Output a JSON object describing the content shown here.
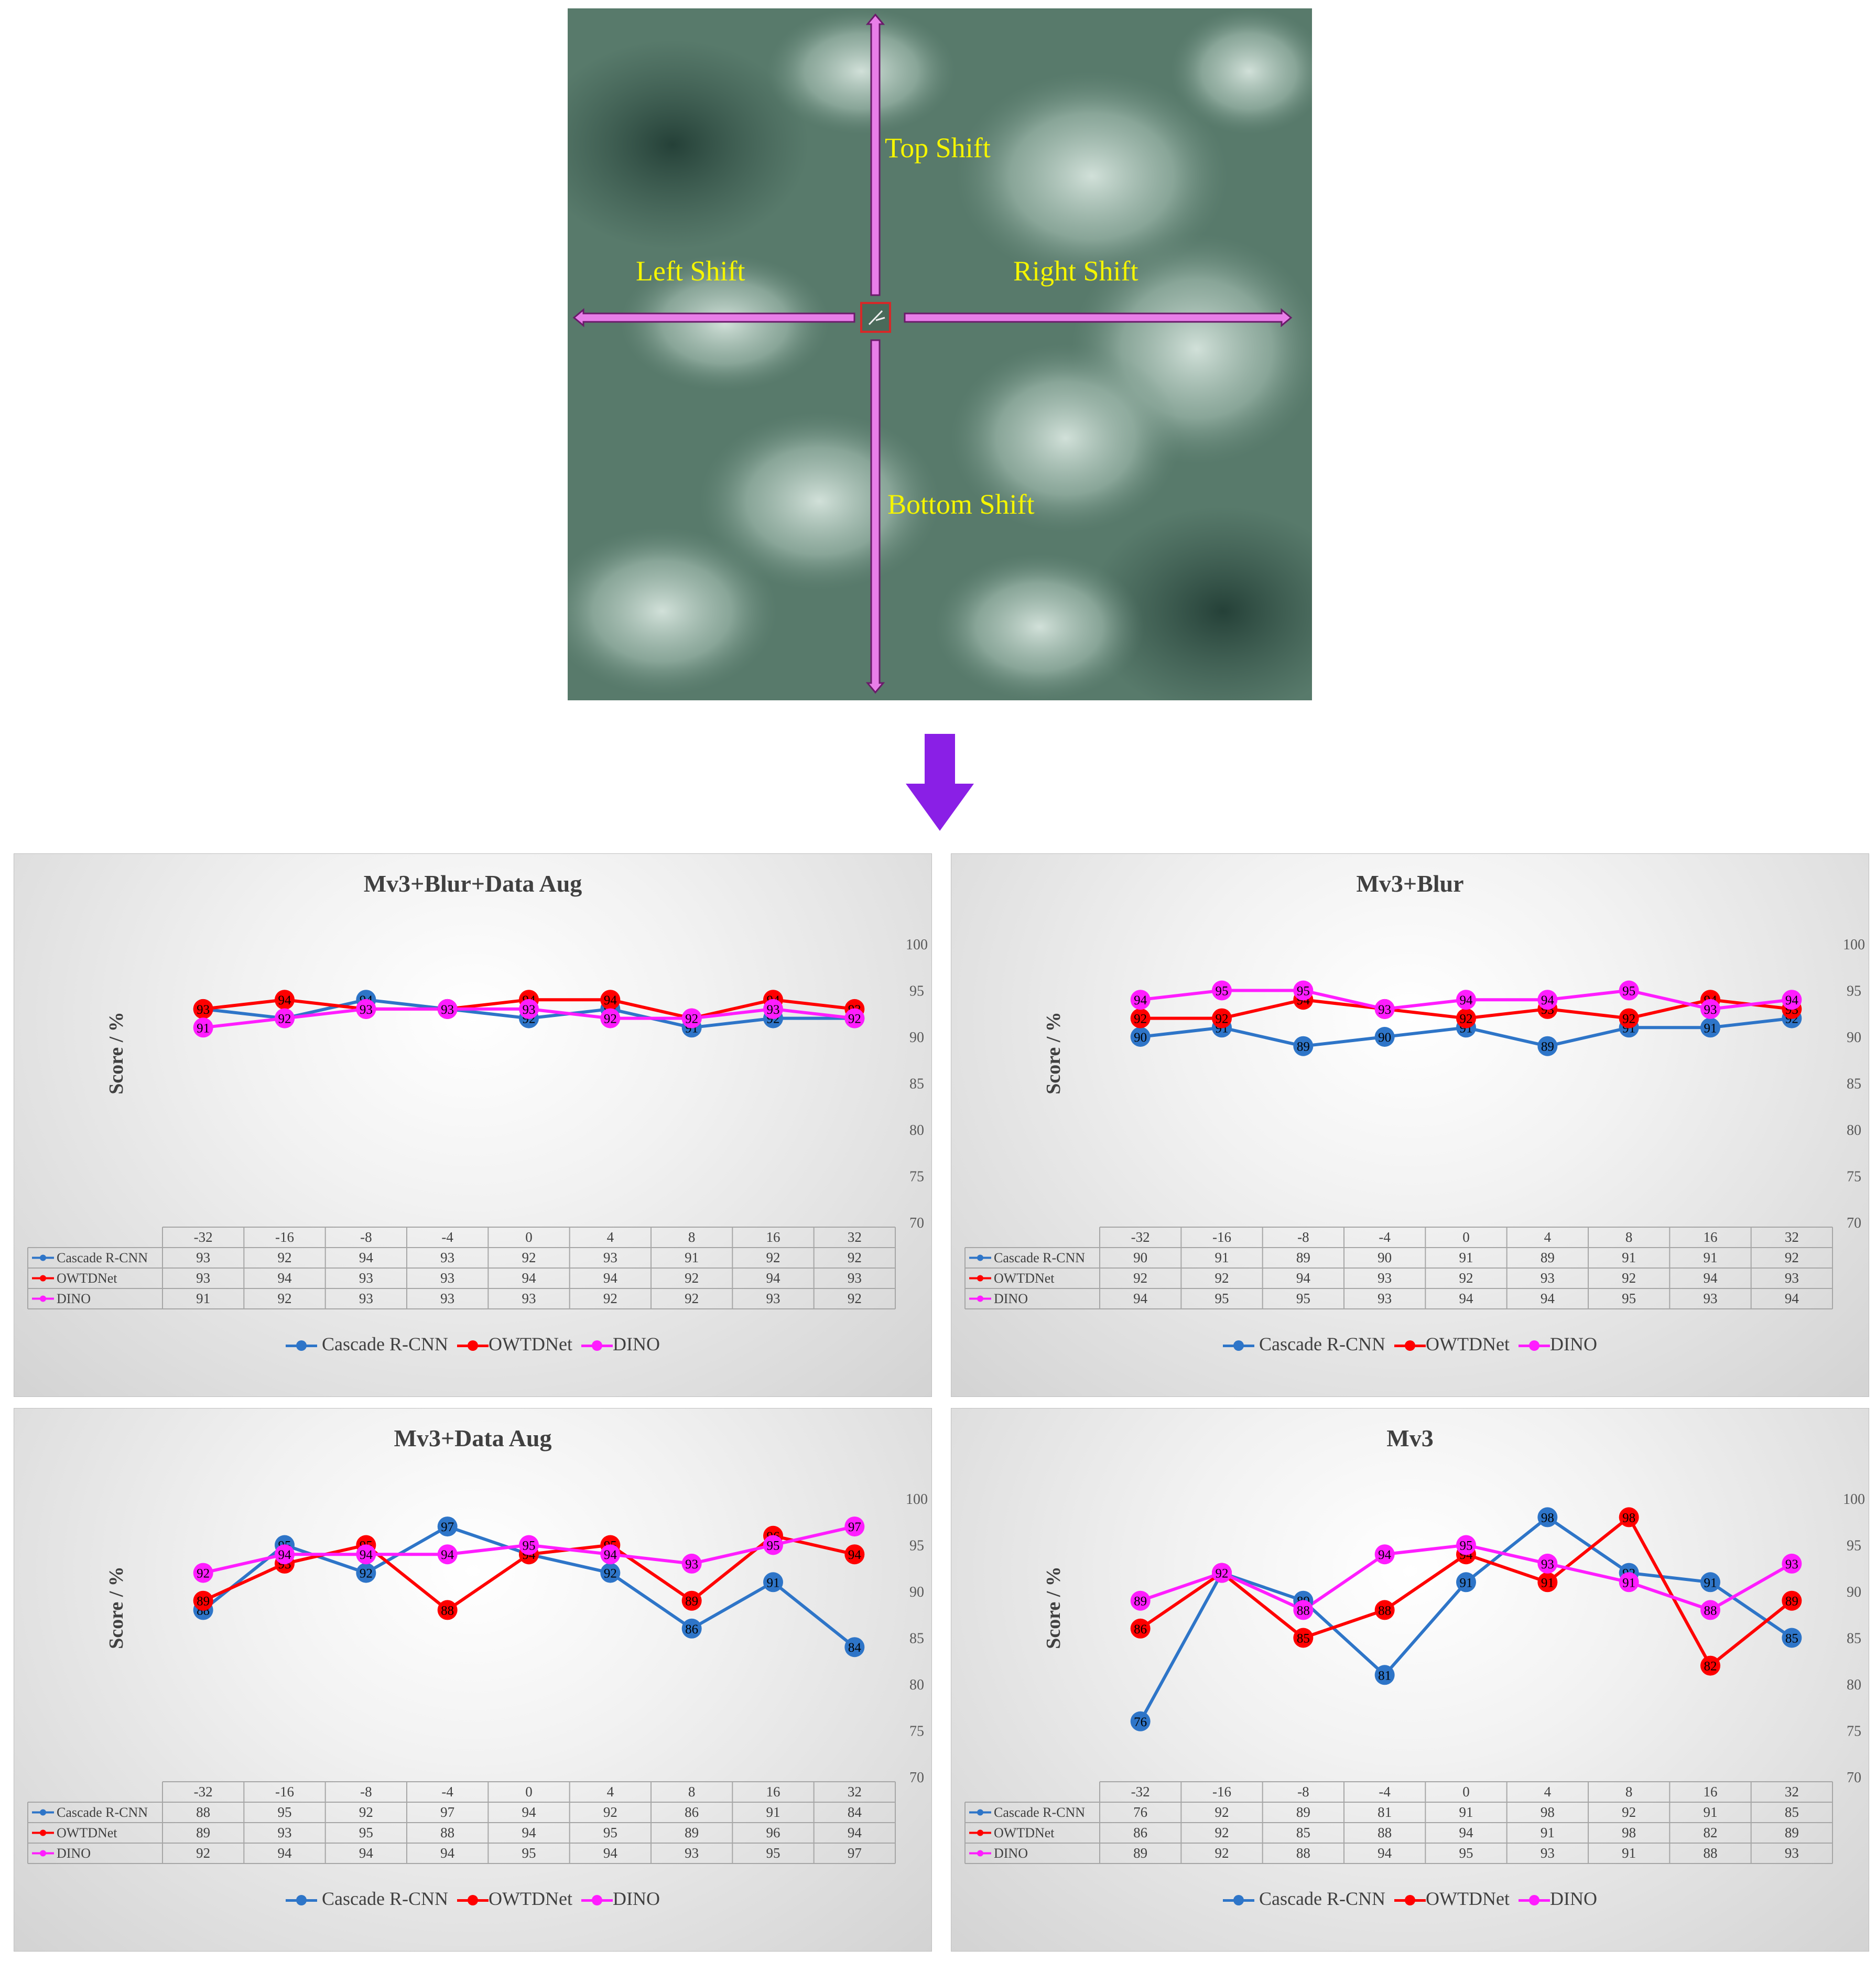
{
  "aerial": {
    "labels": {
      "top": "Top Shift",
      "left": "Left Shift",
      "right": "Right Shift",
      "bottom": "Bottom Shift"
    },
    "arrow_color": "#e87ee8",
    "target_box_color": "#d62828"
  },
  "flow_arrow_color": "#8a1fe6",
  "colors": {
    "Cascade R-CNN": "#2e75c8",
    "OWTDNet": "#ff0000",
    "DINO": "#ff1dff"
  },
  "chart_data": [
    {
      "type": "line",
      "title": "Mv3+Blur+Data Aug",
      "ylabel": "Score / %",
      "ylim": [
        70,
        100
      ],
      "yticks": [
        70,
        75,
        80,
        85,
        90,
        95,
        100
      ],
      "categories": [
        "-32",
        "-16",
        "-8",
        "-4",
        "0",
        "4",
        "8",
        "16",
        "32"
      ],
      "series": [
        {
          "name": "Cascade R-CNN",
          "values": [
            93,
            92,
            94,
            93,
            92,
            93,
            91,
            92,
            92
          ]
        },
        {
          "name": "OWTDNet",
          "values": [
            93,
            94,
            93,
            93,
            94,
            94,
            92,
            94,
            93
          ]
        },
        {
          "name": "DINO",
          "values": [
            91,
            92,
            93,
            93,
            93,
            92,
            92,
            93,
            92
          ]
        }
      ],
      "data_table": true,
      "legend": "bottom"
    },
    {
      "type": "line",
      "title": "Mv3+Blur",
      "ylabel": "Score / %",
      "ylim": [
        70,
        100
      ],
      "yticks": [
        70,
        75,
        80,
        85,
        90,
        95,
        100
      ],
      "categories": [
        "-32",
        "-16",
        "-8",
        "-4",
        "0",
        "4",
        "8",
        "16",
        "32"
      ],
      "series": [
        {
          "name": "Cascade R-CNN",
          "values": [
            90,
            91,
            89,
            90,
            91,
            89,
            91,
            91,
            92
          ]
        },
        {
          "name": "OWTDNet",
          "values": [
            92,
            92,
            94,
            93,
            92,
            93,
            92,
            94,
            93
          ]
        },
        {
          "name": "DINO",
          "values": [
            94,
            95,
            95,
            93,
            94,
            94,
            95,
            93,
            94
          ]
        }
      ],
      "data_table": true,
      "legend": "bottom"
    },
    {
      "type": "line",
      "title": "Mv3+Data Aug",
      "ylabel": "Score / %",
      "ylim": [
        70,
        100
      ],
      "yticks": [
        70,
        75,
        80,
        85,
        90,
        95,
        100
      ],
      "categories": [
        "-32",
        "-16",
        "-8",
        "-4",
        "0",
        "4",
        "8",
        "16",
        "32"
      ],
      "series": [
        {
          "name": "Cascade R-CNN",
          "values": [
            88,
            95,
            92,
            97,
            94,
            92,
            86,
            91,
            84
          ]
        },
        {
          "name": "OWTDNet",
          "values": [
            89,
            93,
            95,
            88,
            94,
            95,
            89,
            96,
            94
          ]
        },
        {
          "name": "DINO",
          "values": [
            92,
            94,
            94,
            94,
            95,
            94,
            93,
            95,
            97
          ]
        }
      ],
      "data_table": true,
      "legend": "bottom"
    },
    {
      "type": "line",
      "title": "Mv3",
      "ylabel": "Score / %",
      "ylim": [
        70,
        100
      ],
      "yticks": [
        70,
        75,
        80,
        85,
        90,
        95,
        100
      ],
      "categories": [
        "-32",
        "-16",
        "-8",
        "-4",
        "0",
        "4",
        "8",
        "16",
        "32"
      ],
      "series": [
        {
          "name": "Cascade R-CNN",
          "values": [
            76,
            92,
            89,
            81,
            91,
            98,
            92,
            91,
            85
          ]
        },
        {
          "name": "OWTDNet",
          "values": [
            86,
            92,
            85,
            88,
            94,
            91,
            98,
            82,
            89
          ]
        },
        {
          "name": "DINO",
          "values": [
            89,
            92,
            88,
            94,
            95,
            93,
            91,
            88,
            93
          ]
        }
      ],
      "data_table": true,
      "legend": "bottom"
    }
  ]
}
